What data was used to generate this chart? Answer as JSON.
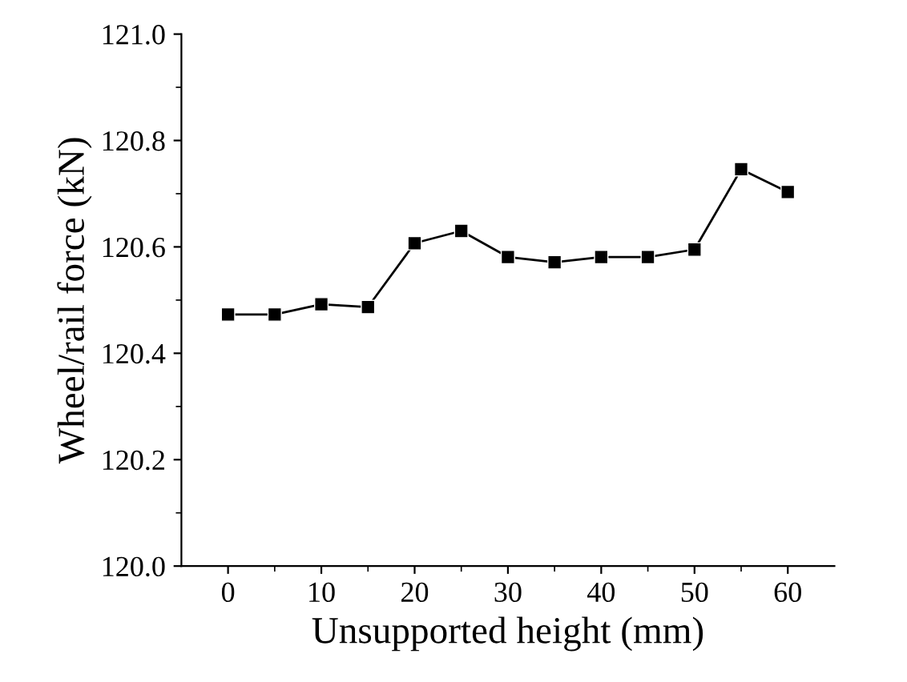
{
  "chart_data": {
    "type": "line",
    "xlabel": "Unsupported height (mm)",
    "ylabel": "Wheel/rail force (kN)",
    "x": [
      0,
      5,
      10,
      15,
      20,
      25,
      30,
      35,
      40,
      45,
      50,
      55,
      60
    ],
    "series": [
      {
        "color": "#000000",
        "values": [
          120.473,
          120.473,
          120.492,
          120.487,
          120.607,
          120.63,
          120.581,
          120.571,
          120.581,
          120.581,
          120.595,
          120.746,
          120.703
        ]
      }
    ],
    "xlim": [
      -5,
      65
    ],
    "xticks": [
      0,
      10,
      20,
      30,
      40,
      50,
      60
    ],
    "ylim": [
      120.0,
      121.0
    ],
    "yticks": [
      {
        "value": 120.0,
        "label": "120.0"
      },
      {
        "value": 120.2,
        "label": "120.2"
      },
      {
        "value": 120.4,
        "label": "120.4"
      },
      {
        "value": 120.6,
        "label": "120.6"
      },
      {
        "value": 120.8,
        "label": "120.8"
      },
      {
        "value": 121.0,
        "label": "121.0"
      }
    ],
    "marker": "square",
    "line_style": "solid",
    "grid": false,
    "legend": false
  }
}
